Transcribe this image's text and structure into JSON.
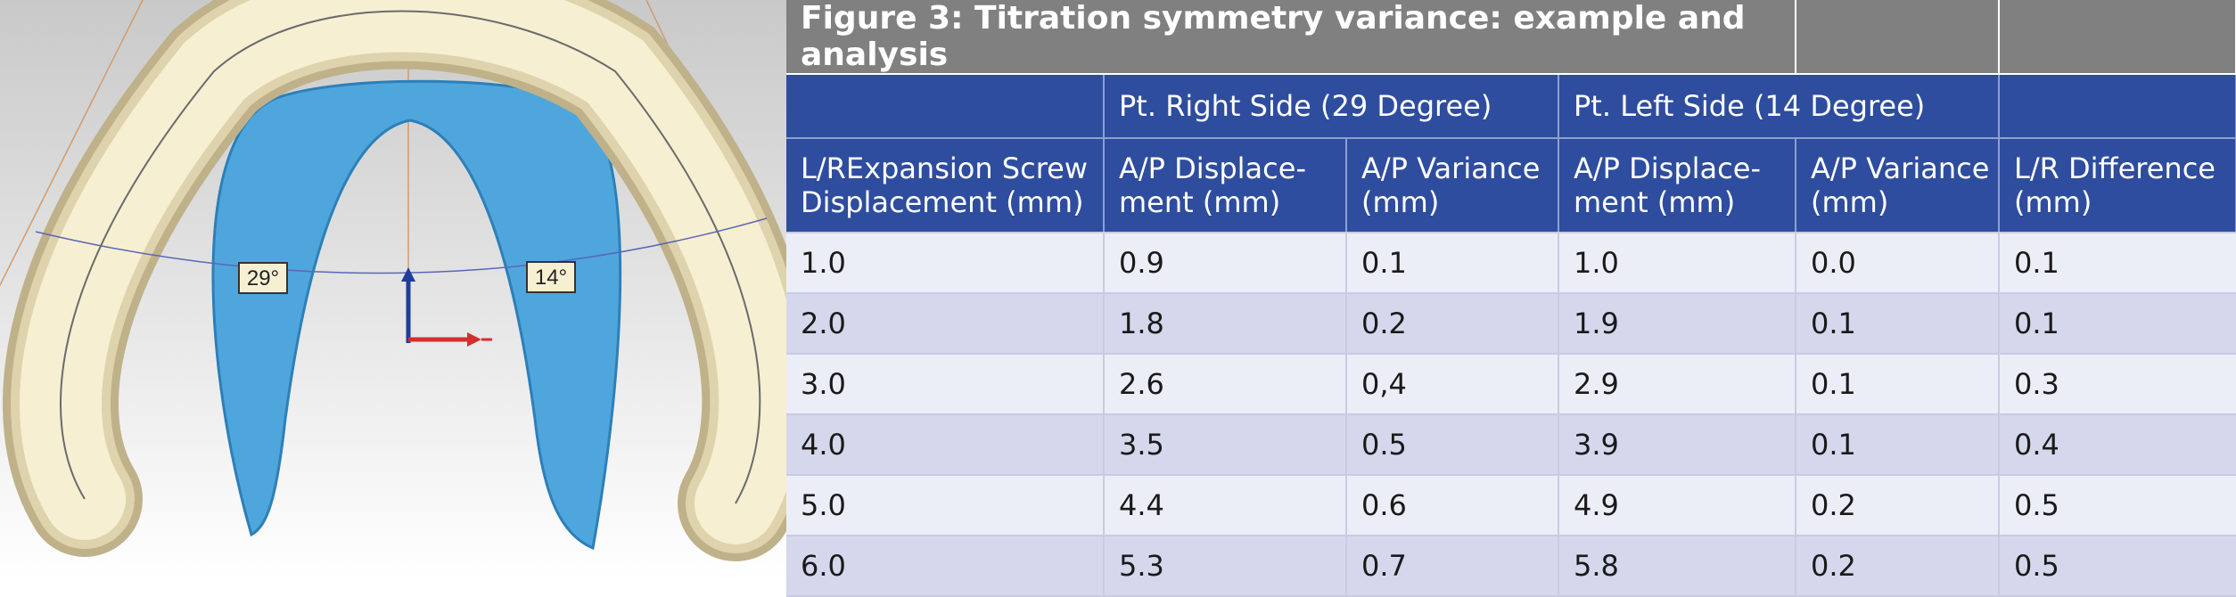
{
  "figure": {
    "title": "Figure 3: Titration symmetry variance: example and analysis",
    "image_labels": {
      "right_angle": "29°",
      "left_angle": "14°"
    },
    "colors": {
      "title_bar": "#808080",
      "header_bg": "#2f4d9e",
      "row_light": "#eceef7",
      "row_dark": "#d5d8ec",
      "splint": "#f6efd2",
      "model": "#4fa6dc",
      "axis_z": "#1f3c9a",
      "axis_x": "#d32f2f"
    }
  },
  "chart_data": {
    "type": "table",
    "title": "Figure 3: Titration symmetry variance: example and analysis",
    "group_headers": [
      {
        "label": "Pt. Right Side (29 Degree)",
        "spans_columns": [
          "A/P Displace-ment (mm) right",
          "A/P Variance (mm) right"
        ]
      },
      {
        "label": "Pt. Left Side (14 Degree)",
        "spans_columns": [
          "A/P Displace-ment (mm) left",
          "A/P Variance (mm) left"
        ]
      }
    ],
    "columns": [
      [
        "L/RExpansion Screw",
        "Displacement (mm)"
      ],
      [
        "A/P Displace-",
        "ment (mm)"
      ],
      [
        "A/P Variance",
        "(mm)"
      ],
      [
        "A/P Displace-",
        "ment (mm)"
      ],
      [
        "A/P Variance",
        "(mm)"
      ],
      [
        "L/R Difference",
        "(mm)"
      ]
    ],
    "rows": [
      [
        "1.0",
        "0.9",
        "0.1",
        "1.0",
        "0.0",
        "0.1"
      ],
      [
        "2.0",
        "1.8",
        "0.2",
        "1.9",
        "0.1",
        "0.1"
      ],
      [
        "3.0",
        "2.6",
        "0,4",
        "2.9",
        "0.1",
        "0.3"
      ],
      [
        "4.0",
        "3.5",
        "0.5",
        "3.9",
        "0.1",
        "0.4"
      ],
      [
        "5.0",
        "4.4",
        "0.6",
        "4.9",
        "0.2",
        "0.5"
      ],
      [
        "6.0",
        "5.3",
        "0.7",
        "5.8",
        "0.2",
        "0.5"
      ]
    ]
  }
}
